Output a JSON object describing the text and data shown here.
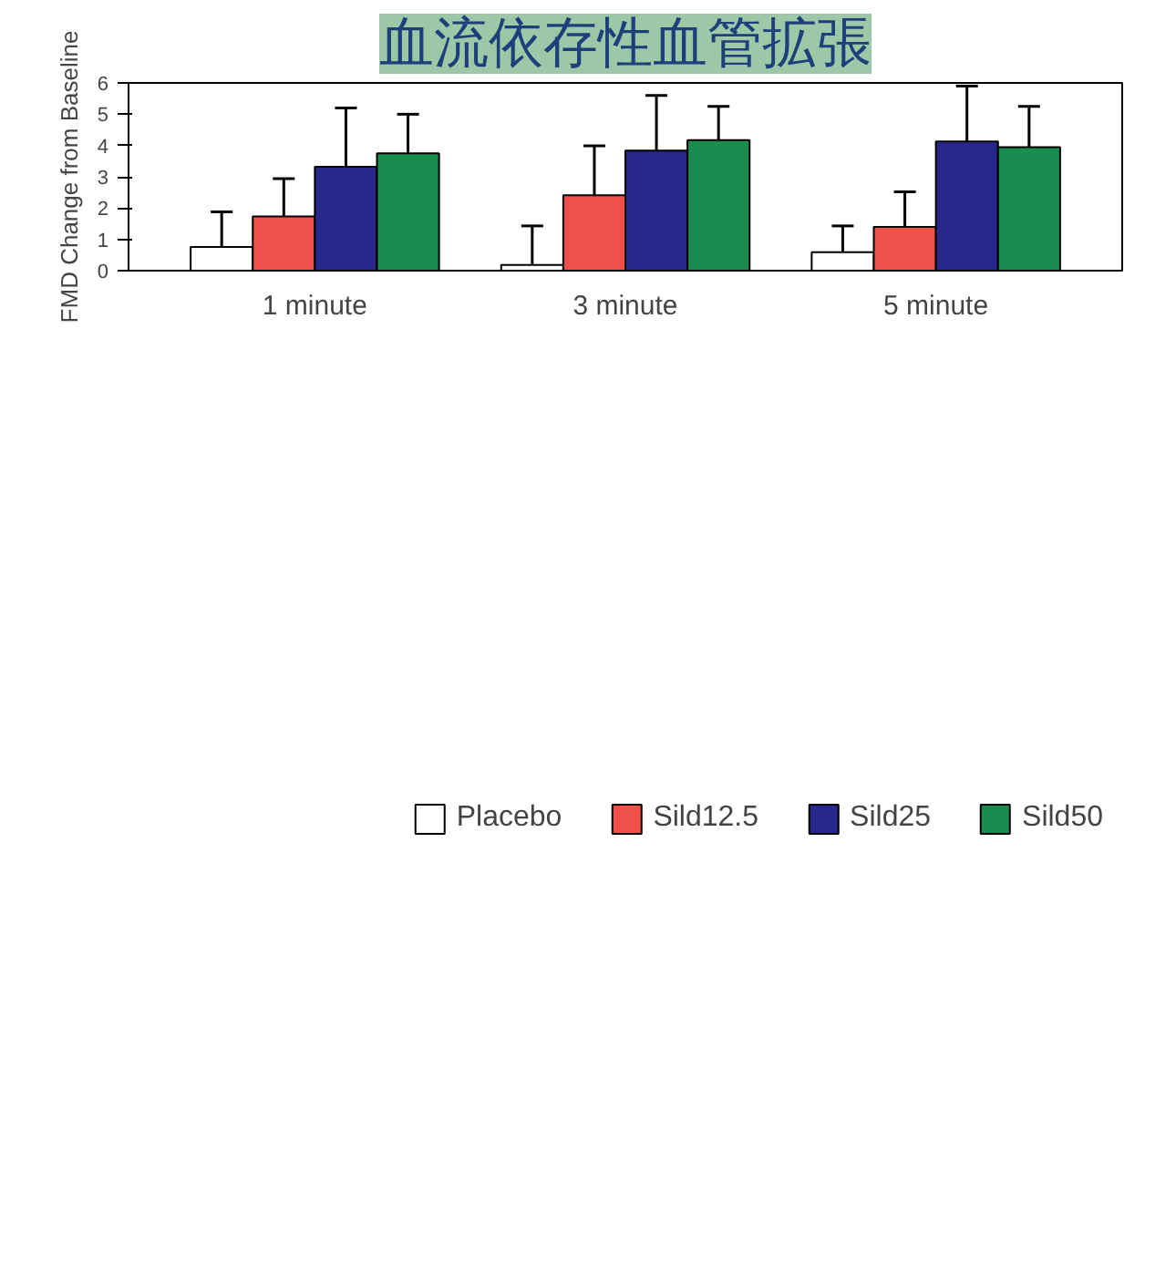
{
  "chart_data": {
    "type": "bar",
    "title": "血流依存性血管拡張",
    "ylabel": "FMD Change from Baseline",
    "categories": [
      "1 minute",
      "3 minute",
      "5 minute"
    ],
    "series": [
      {
        "name": "Placebo",
        "color": "#ffffff",
        "values": [
          0.76,
          0.18,
          0.59
        ],
        "errors": [
          [
            0.76,
            1.88
          ],
          [
            0.18,
            1.43
          ],
          [
            0.59,
            1.43
          ]
        ]
      },
      {
        "name": "Sild12.5",
        "color": "#f0504a",
        "values": [
          1.73,
          2.41,
          1.4
        ],
        "errors": [
          [
            1.73,
            2.94
          ],
          [
            2.41,
            3.99
          ],
          [
            1.4,
            2.52
          ]
        ]
      },
      {
        "name": "Sild25",
        "color": "#28288c",
        "values": [
          3.32,
          3.84,
          4.13
        ],
        "errors": [
          [
            3.32,
            5.2
          ],
          [
            3.84,
            5.6
          ],
          [
            4.13,
            5.9
          ]
        ]
      },
      {
        "name": "Sild50",
        "color": "#1a8c50",
        "values": [
          3.75,
          4.17,
          3.95
        ],
        "errors": [
          [
            3.75,
            5.0
          ],
          [
            4.17,
            5.25
          ],
          [
            3.95,
            5.25
          ]
        ]
      }
    ],
    "ylim": [
      0,
      6
    ],
    "yticks": [
      0,
      1,
      2,
      3,
      4,
      5,
      6
    ],
    "grid": false,
    "legend": "bottom"
  }
}
